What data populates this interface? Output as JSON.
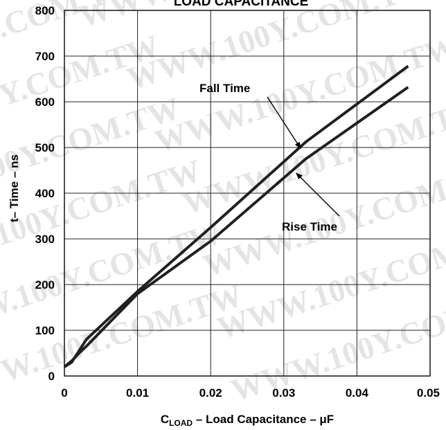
{
  "chart_data": {
    "type": "line",
    "title": "LOAD CAPACITANCE",
    "xlabel": {
      "prefix": "C",
      "subscript": "LOAD",
      "suffix": " – Load Capacitance – μF"
    },
    "ylabel": "t– Time – ns",
    "xlim": [
      0,
      0.05
    ],
    "ylim": [
      0,
      800
    ],
    "x_ticks": [
      0,
      0.01,
      0.02,
      0.03,
      0.04,
      0.05
    ],
    "x_tick_labels": [
      "0",
      "0.01",
      "0.02",
      "0.03",
      "0.04",
      "0.05"
    ],
    "y_ticks": [
      0,
      100,
      200,
      300,
      400,
      500,
      600,
      700,
      800
    ],
    "y_tick_labels": [
      "0",
      "100",
      "200",
      "300",
      "400",
      "500",
      "600",
      "700",
      "800"
    ],
    "grid": true,
    "series": [
      {
        "name": "Fall Time",
        "x": [
          0,
          0.001,
          0.002,
          0.003,
          0.01,
          0.02,
          0.033,
          0.047
        ],
        "y": [
          20,
          30,
          55,
          80,
          185,
          325,
          512,
          678
        ]
      },
      {
        "name": "Rise Time",
        "x": [
          0,
          0.001,
          0.002,
          0.003,
          0.01,
          0.02,
          0.033,
          0.047
        ],
        "y": [
          20,
          33,
          50,
          65,
          180,
          295,
          475,
          632
        ]
      }
    ],
    "annotations": [
      {
        "text": "Fall Time",
        "series": "Fall Time",
        "arrow_to": [
          0.0323,
          498
        ]
      },
      {
        "text": "Rise Time",
        "series": "Rise Time",
        "arrow_to": [
          0.0317,
          444
        ]
      }
    ],
    "line_color": "#231f20",
    "grid_color": "#231f20"
  },
  "watermark": "WWW.100Y.COM.TW"
}
